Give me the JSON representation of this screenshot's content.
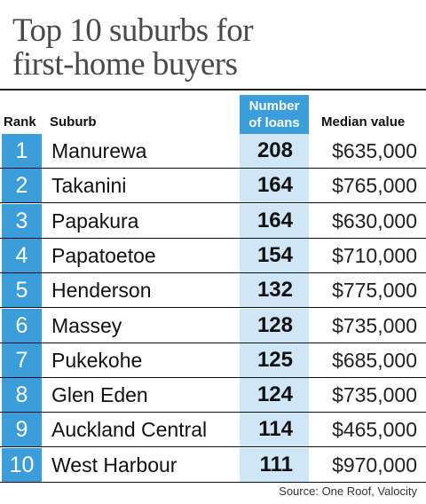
{
  "chart_data": {
    "type": "table",
    "title_lines": [
      "Top 10 suburbs for",
      "first-home buyers"
    ],
    "columns": {
      "rank": "Rank",
      "suburb": "Suburb",
      "loans": [
        "Number",
        "of loans"
      ],
      "median": "Median value"
    },
    "rows": [
      {
        "rank": "1",
        "suburb": "Manurewa",
        "loans": "208",
        "median": "$635,000"
      },
      {
        "rank": "2",
        "suburb": "Takanini",
        "loans": "164",
        "median": "$765,000"
      },
      {
        "rank": "3",
        "suburb": "Papakura",
        "loans": "164",
        "median": "$630,000"
      },
      {
        "rank": "4",
        "suburb": "Papatoetoe",
        "loans": "154",
        "median": "$710,000"
      },
      {
        "rank": "5",
        "suburb": "Henderson",
        "loans": "132",
        "median": "$775,000"
      },
      {
        "rank": "6",
        "suburb": "Massey",
        "loans": "128",
        "median": "$735,000"
      },
      {
        "rank": "7",
        "suburb": "Pukekohe",
        "loans": "125",
        "median": "$685,000"
      },
      {
        "rank": "8",
        "suburb": "Glen Eden",
        "loans": "124",
        "median": "$735,000"
      },
      {
        "rank": "9",
        "suburb": "Auckland Central",
        "loans": "114",
        "median": "$465,000"
      },
      {
        "rank": "10",
        "suburb": "West Harbour",
        "loans": "111",
        "median": "$970,000"
      }
    ],
    "source": "Source: One Roof, Valocity"
  },
  "colors": {
    "accent": "#3c9ddb",
    "loans_column": "#cfe6f6",
    "title": "#4a4a4a"
  }
}
